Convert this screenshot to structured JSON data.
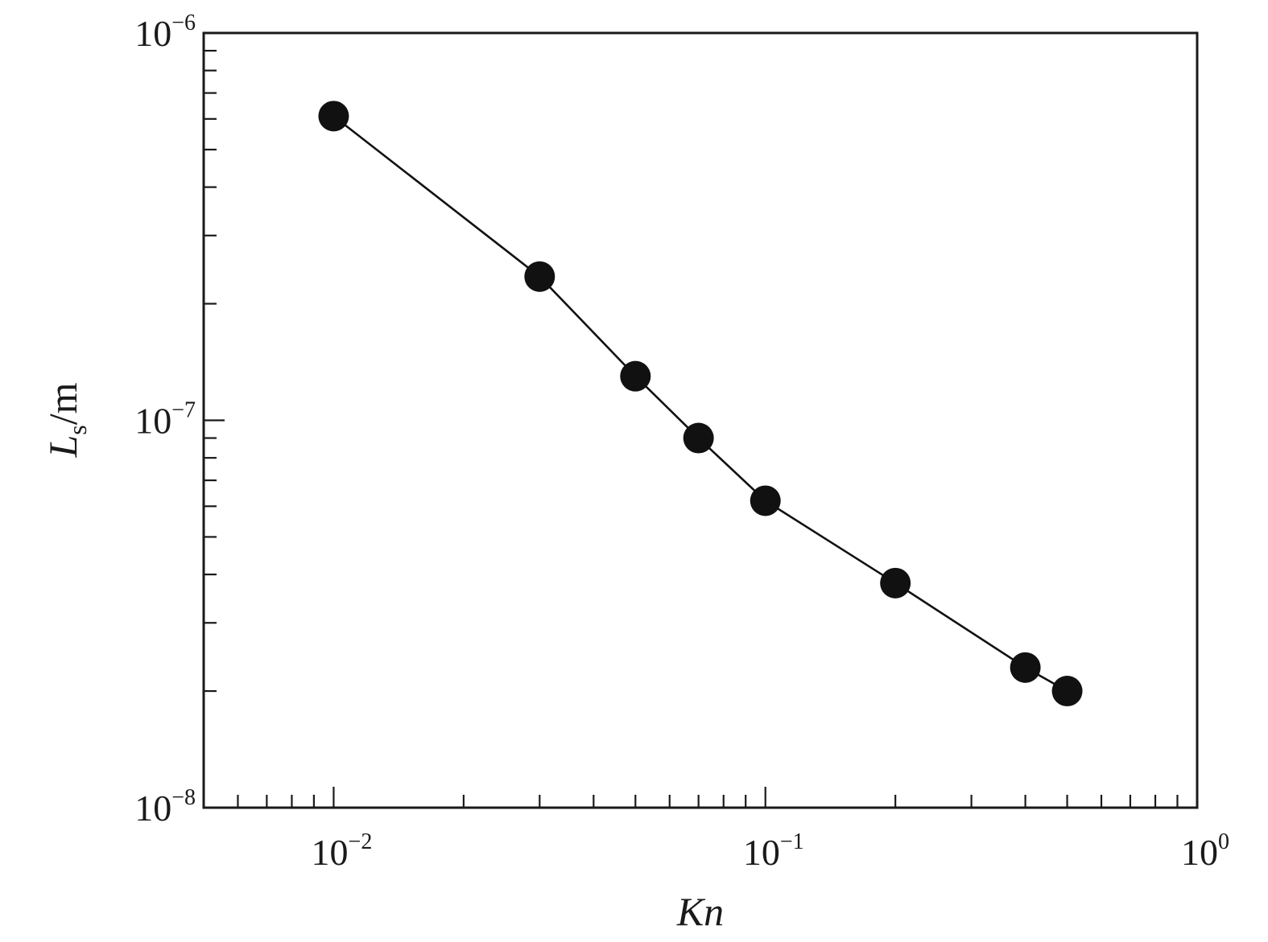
{
  "chart_data": {
    "type": "line",
    "title": "",
    "xlabel": "Kn",
    "ylabel": {
      "main": "L",
      "sub": "s",
      "rest": "/m"
    },
    "xscale": "log",
    "yscale": "log",
    "xlim": [
      0.005,
      1
    ],
    "ylim": [
      1e-08,
      1e-06
    ],
    "grid": false,
    "legend": "none",
    "x_ticks": [
      {
        "value": 0.01,
        "base": "10",
        "exp": "−2"
      },
      {
        "value": 0.1,
        "base": "10",
        "exp": "−1"
      },
      {
        "value": 1,
        "base": "10",
        "exp": "0"
      }
    ],
    "y_ticks": [
      {
        "value": 1e-08,
        "base": "10",
        "exp": "−8"
      },
      {
        "value": 1e-07,
        "base": "10",
        "exp": "−7"
      },
      {
        "value": 1e-06,
        "base": "10",
        "exp": "−6"
      }
    ],
    "series": [
      {
        "marker": "filled-circle",
        "color": "#111111",
        "x": [
          0.01,
          0.03,
          0.05,
          0.07,
          0.1,
          0.2,
          0.4,
          0.5
        ],
        "y": [
          6.1e-07,
          2.35e-07,
          1.3e-07,
          9e-08,
          6.2e-08,
          3.8e-08,
          2.3e-08,
          2e-08
        ]
      }
    ]
  }
}
